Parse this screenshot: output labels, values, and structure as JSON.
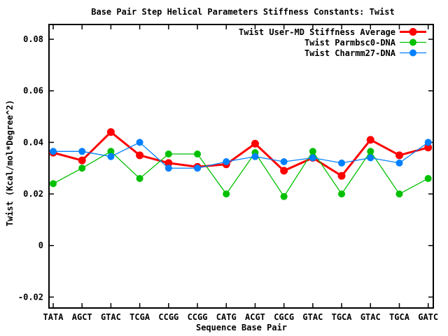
{
  "chart_data": {
    "type": "line",
    "title": "Base Pair Step Helical Parameters Stiffness Constants: Twist",
    "xlabel": "Sequence Base Pair",
    "ylabel": "Twist (Kcal/mol*Degree^2)",
    "categories": [
      "TATA",
      "AGCT",
      "GTAC",
      "TCGA",
      "CCGG",
      "CCGG",
      "CATG",
      "ACGT",
      "CGCG",
      "GTAC",
      "TGCA",
      "GTAC",
      "TGCA",
      "GATC"
    ],
    "yticks": [
      0.08,
      0.06,
      0.04,
      0.02,
      0,
      -0.02
    ],
    "ytick_labels": [
      "0.08",
      "0.06",
      "0.04",
      "0.02",
      "0",
      "-0.02"
    ],
    "ylim": [
      -0.024,
      0.086
    ],
    "grid": false,
    "legend_position": "top-right",
    "background_color": "#ffffff",
    "border_color": "#000000",
    "series": [
      {
        "name": "Twist User-MD Stiffness Average",
        "color": "#ff0000",
        "line_width": 3,
        "marker_radius": 5.5,
        "values": [
          0.036,
          0.033,
          0.044,
          0.035,
          0.032,
          0.0305,
          0.0315,
          0.0395,
          0.029,
          0.034,
          0.027,
          0.041,
          0.035,
          0.038
        ]
      },
      {
        "name": "Twist Parmbsc0-DNA",
        "color": "#00c000",
        "line_width": 1.3,
        "marker_radius": 5,
        "values": [
          0.024,
          0.03,
          0.0365,
          0.026,
          0.0355,
          0.0355,
          0.02,
          0.036,
          0.019,
          0.0365,
          0.02,
          0.0365,
          0.02,
          0.026
        ]
      },
      {
        "name": "Twist Charmm27-DNA",
        "color": "#0080ff",
        "line_width": 1.3,
        "marker_radius": 5,
        "values": [
          0.0365,
          0.0365,
          0.0345,
          0.04,
          0.03,
          0.03,
          0.0325,
          0.0345,
          0.0325,
          0.034,
          0.032,
          0.034,
          0.032,
          0.04
        ]
      }
    ]
  }
}
